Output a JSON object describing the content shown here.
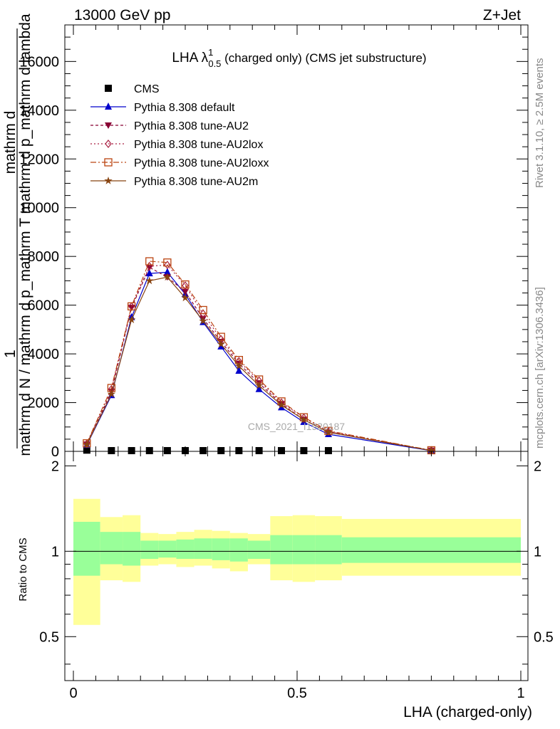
{
  "header": {
    "left": "13000 GeV pp",
    "right": "Z+Jet"
  },
  "side_text": {
    "rivet": "Rivet 3.1.10, ≥ 2.5M events",
    "mcplots": "mcplots.cern.ch [arXiv:1306.3436]"
  },
  "watermark": "CMS_2021_I1920187",
  "chart_data": [
    {
      "type": "line",
      "title": "LHA λ¹₀.₅ (charged only) (CMS jet substructure)",
      "title_parts": {
        "main": "LHA λ",
        "sup": "1",
        "sub": "0.5",
        "rest": " (charged only) (CMS jet substructure)"
      },
      "ylabel": "1 / mathrm d N_ / mathrm d p_mathrm T mathrm d p_mathrm d lambda",
      "ylabel_parts": {
        "numerator_one": "1",
        "denominator_one": "mathrm d N",
        "numerator_two": "mathrm d",
        "denominator_two": "mathrm d p",
        "composite": "mathrm d N / mathrm d p_mathrm T mathrm d p_mathrm d lambda"
      },
      "xlim": [
        0,
        1
      ],
      "ylim": [
        0,
        17500
      ],
      "yticks": [
        0,
        2000,
        4000,
        6000,
        8000,
        10000,
        12000,
        14000,
        16000
      ],
      "ytick_labels": [
        "0",
        "2000",
        "4000",
        "6000",
        "8000",
        "10000",
        "12000",
        "14000",
        "16000"
      ],
      "legend_placement": "top-left",
      "x": [
        0.03,
        0.085,
        0.13,
        0.17,
        0.21,
        0.25,
        0.29,
        0.33,
        0.37,
        0.415,
        0.465,
        0.515,
        0.57,
        0.8
      ],
      "series": [
        {
          "name": "CMS",
          "marker": "square",
          "color": "#000000",
          "values": [
            50,
            30,
            30,
            30,
            30,
            30,
            30,
            30,
            30,
            30,
            30,
            30,
            30,
            null
          ]
        },
        {
          "name": "Pythia 8.308 default",
          "marker": "triangle-up",
          "color": "#0000cc",
          "dash": "",
          "values": [
            260,
            2300,
            5500,
            7300,
            7350,
            6450,
            5300,
            4300,
            3300,
            2550,
            1800,
            1200,
            700,
            30
          ]
        },
        {
          "name": "Pythia 8.308 tune-AU2",
          "marker": "triangle-down",
          "color": "#880033",
          "dash": "4,3",
          "values": [
            290,
            2450,
            5900,
            7550,
            7150,
            6550,
            5450,
            4500,
            3600,
            2800,
            1950,
            1300,
            800,
            35
          ]
        },
        {
          "name": "Pythia 8.308 tune-AU2lox",
          "marker": "diamond",
          "color": "#aa2244",
          "dash": "2,3",
          "values": [
            310,
            2550,
            5950,
            7600,
            7650,
            6800,
            5650,
            4600,
            3700,
            2900,
            2000,
            1380,
            820,
            40
          ]
        },
        {
          "name": "Pythia 8.308 tune-AU2loxx",
          "marker": "square-open",
          "color": "#bb4411",
          "dash": "8,3,2,3",
          "values": [
            330,
            2600,
            5950,
            7800,
            7750,
            6850,
            5800,
            4700,
            3750,
            2950,
            2050,
            1400,
            840,
            45
          ]
        },
        {
          "name": "Pythia 8.308 tune-AU2m",
          "marker": "star",
          "color": "#884411",
          "dash": "",
          "values": [
            280,
            2350,
            5400,
            7000,
            7150,
            6300,
            5350,
            4400,
            3500,
            2700,
            1900,
            1300,
            780,
            35
          ]
        }
      ]
    },
    {
      "type": "area",
      "ylabel": "Ratio to CMS",
      "xlabel": "LHA (charged-only)",
      "xlim": [
        0,
        1
      ],
      "ylim": [
        0.35,
        2.25
      ],
      "yticks": [
        0.5,
        1,
        2
      ],
      "ytick_labels": [
        "0.5",
        "1",
        "2"
      ],
      "xticks": [
        0,
        0.5,
        1
      ],
      "xtick_labels": [
        "0",
        "0.5",
        "1"
      ],
      "reference_line": 1,
      "bins": [
        {
          "x0": 0.0,
          "x1": 0.06,
          "inner": [
            0.82,
            1.27
          ],
          "outer": [
            0.55,
            1.53
          ]
        },
        {
          "x0": 0.06,
          "x1": 0.11,
          "inner": [
            0.9,
            1.17
          ],
          "outer": [
            0.79,
            1.32
          ]
        },
        {
          "x0": 0.11,
          "x1": 0.15,
          "inner": [
            0.89,
            1.17
          ],
          "outer": [
            0.78,
            1.34
          ]
        },
        {
          "x0": 0.15,
          "x1": 0.19,
          "inner": [
            0.94,
            1.09
          ],
          "outer": [
            0.89,
            1.16
          ]
        },
        {
          "x0": 0.19,
          "x1": 0.23,
          "inner": [
            0.95,
            1.09
          ],
          "outer": [
            0.9,
            1.15
          ]
        },
        {
          "x0": 0.23,
          "x1": 0.27,
          "inner": [
            0.94,
            1.1
          ],
          "outer": [
            0.88,
            1.17
          ]
        },
        {
          "x0": 0.27,
          "x1": 0.31,
          "inner": [
            0.94,
            1.11
          ],
          "outer": [
            0.89,
            1.19
          ]
        },
        {
          "x0": 0.31,
          "x1": 0.35,
          "inner": [
            0.93,
            1.11
          ],
          "outer": [
            0.87,
            1.18
          ]
        },
        {
          "x0": 0.35,
          "x1": 0.39,
          "inner": [
            0.92,
            1.11
          ],
          "outer": [
            0.85,
            1.16
          ]
        },
        {
          "x0": 0.39,
          "x1": 0.44,
          "inner": [
            0.94,
            1.09
          ],
          "outer": [
            0.9,
            1.15
          ]
        },
        {
          "x0": 0.44,
          "x1": 0.49,
          "inner": [
            0.9,
            1.14
          ],
          "outer": [
            0.79,
            1.33
          ]
        },
        {
          "x0": 0.49,
          "x1": 0.54,
          "inner": [
            0.9,
            1.14
          ],
          "outer": [
            0.78,
            1.34
          ]
        },
        {
          "x0": 0.54,
          "x1": 0.6,
          "inner": [
            0.9,
            1.14
          ],
          "outer": [
            0.79,
            1.33
          ]
        },
        {
          "x0": 0.6,
          "x1": 1.0,
          "inner": [
            0.91,
            1.12
          ],
          "outer": [
            0.82,
            1.3
          ]
        }
      ],
      "colors": {
        "inner": "#99ff99",
        "outer": "#ffff99"
      }
    }
  ]
}
